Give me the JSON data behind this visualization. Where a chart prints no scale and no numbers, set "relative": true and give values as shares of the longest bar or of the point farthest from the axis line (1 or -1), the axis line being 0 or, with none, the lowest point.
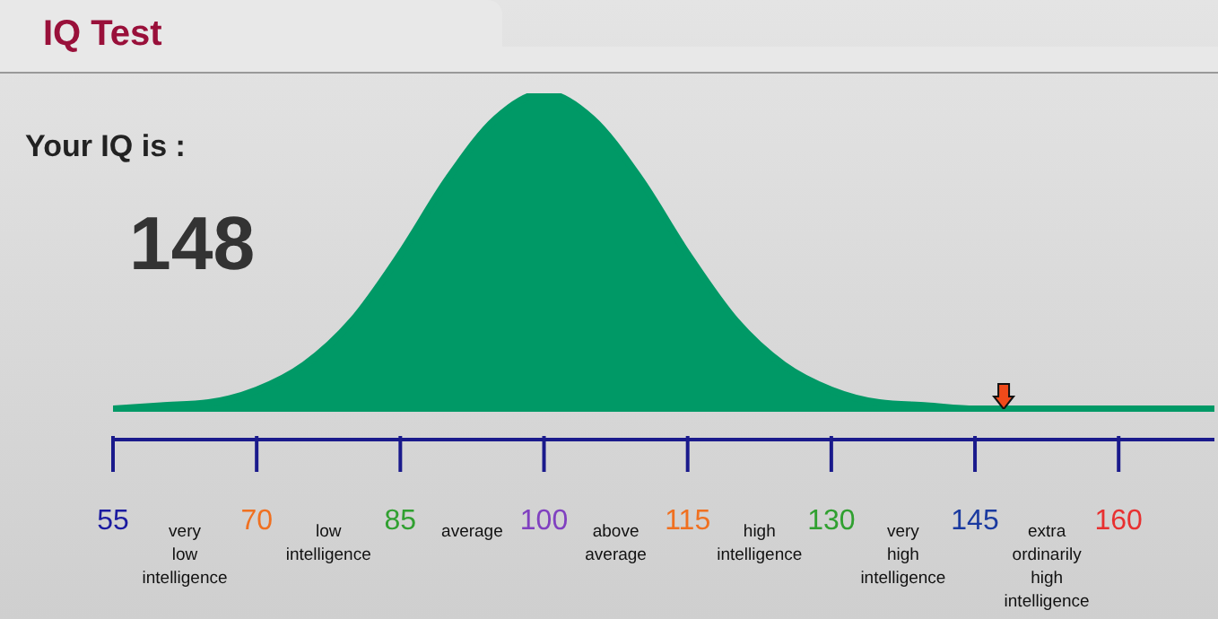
{
  "chart_data": {
    "type": "area",
    "title": "IQ Test",
    "relative": true,
    "x": [
      55,
      60,
      65,
      70,
      75,
      80,
      85,
      90,
      95,
      100,
      105,
      110,
      115,
      120,
      125,
      130,
      135,
      140,
      145,
      150,
      155,
      160,
      165,
      170
    ],
    "series": [
      {
        "color": "#009966",
        "values": [
          0,
          0.01,
          0.02,
          0.06,
          0.14,
          0.28,
          0.49,
          0.73,
          0.92,
          1,
          0.92,
          0.73,
          0.49,
          0.28,
          0.14,
          0.06,
          0.02,
          0.01,
          0,
          0,
          0,
          0,
          0,
          0
        ]
      },
      {
        "type": "scatter",
        "color": "#f04a1a",
        "x": [
          148
        ],
        "values": [
          0.04
        ]
      }
    ],
    "xlim": [
      55,
      170
    ],
    "xticks": [
      55,
      70,
      85,
      100,
      115,
      130,
      145,
      160
    ],
    "annotations": [
      "Your IQ is :",
      "148",
      "very\nlow\nintelligence",
      "low\nintelligence",
      "average",
      "above\naverage",
      "high\nintelligence",
      "very\nhigh\nintelligence",
      "extra\nordinarily\nhigh\nintelligence"
    ]
  }
}
